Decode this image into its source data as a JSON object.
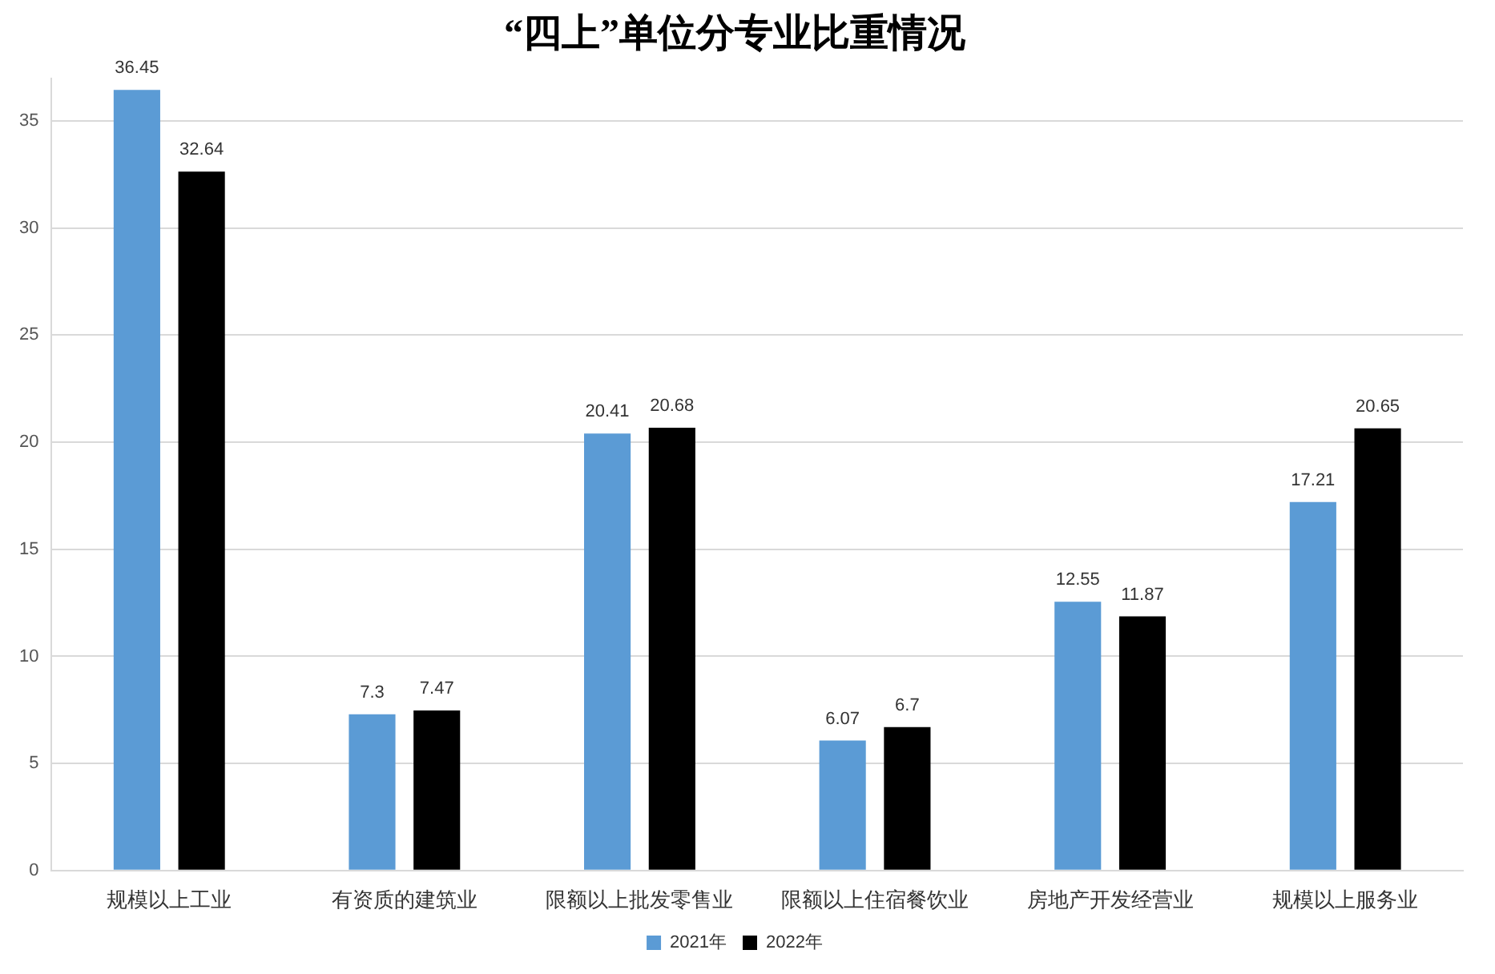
{
  "chart_data": {
    "type": "bar",
    "title": "“四上”单位分专业比重情况",
    "categories": [
      "规模以上工业",
      "有资质的建筑业",
      "限额以上批发零售业",
      "限额以上住宿餐饮业",
      "房地产开发经营业",
      "规模以上服务业"
    ],
    "series": [
      {
        "name": "2021年",
        "color": "#5b9bd5",
        "values": [
          36.45,
          7.3,
          20.41,
          6.07,
          12.55,
          17.21
        ]
      },
      {
        "name": "2022年",
        "color": "#000000",
        "values": [
          32.64,
          7.47,
          20.68,
          6.7,
          11.87,
          20.65
        ]
      }
    ],
    "ylim": [
      0,
      37
    ],
    "yticks": [
      0,
      5,
      10,
      15,
      20,
      25,
      30,
      35
    ],
    "grid": "y",
    "legend": "bottom",
    "data_labels": true
  }
}
